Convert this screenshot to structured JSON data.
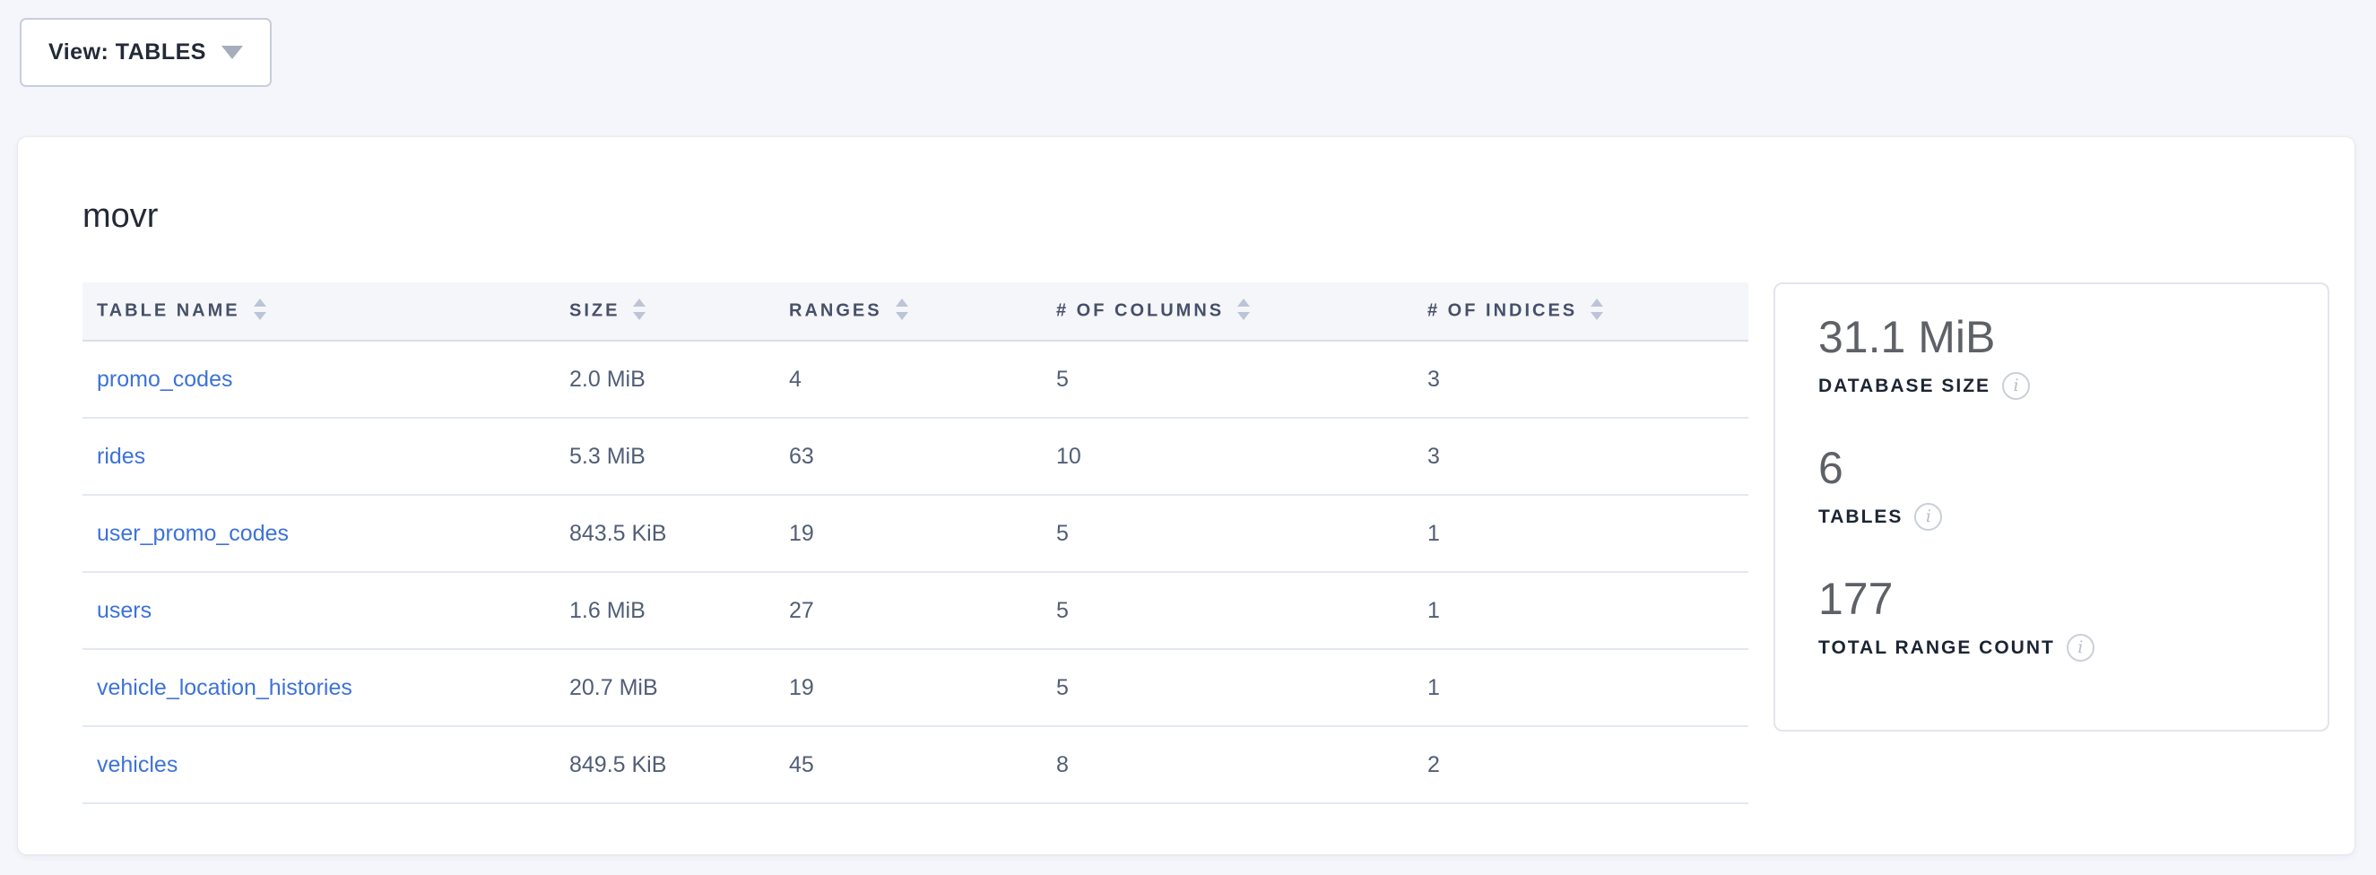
{
  "toolbar": {
    "view_button": {
      "label": "View: TABLES"
    }
  },
  "database_card": {
    "title": "movr",
    "table": {
      "headers": [
        {
          "key": "table-name",
          "label": "TABLE NAME"
        },
        {
          "key": "size",
          "label": "SIZE"
        },
        {
          "key": "ranges",
          "label": "RANGES"
        },
        {
          "key": "num-columns",
          "label": "# OF COLUMNS"
        },
        {
          "key": "num-indices",
          "label": "# OF INDICES"
        }
      ],
      "rows": [
        {
          "table_name": "promo_codes",
          "size": "2.0 MiB",
          "ranges": "4",
          "num_columns": "5",
          "num_indices": "3"
        },
        {
          "table_name": "rides",
          "size": "5.3 MiB",
          "ranges": "63",
          "num_columns": "10",
          "num_indices": "3"
        },
        {
          "table_name": "user_promo_codes",
          "size": "843.5 KiB",
          "ranges": "19",
          "num_columns": "5",
          "num_indices": "1"
        },
        {
          "table_name": "users",
          "size": "1.6 MiB",
          "ranges": "27",
          "num_columns": "5",
          "num_indices": "1"
        },
        {
          "table_name": "vehicle_location_histories",
          "size": "20.7 MiB",
          "ranges": "19",
          "num_columns": "5",
          "num_indices": "1"
        },
        {
          "table_name": "vehicles",
          "size": "849.5 KiB",
          "ranges": "45",
          "num_columns": "8",
          "num_indices": "2"
        }
      ]
    },
    "summary_stats": [
      {
        "key": "database-size",
        "value": "31.1 MiB",
        "label": "DATABASE SIZE"
      },
      {
        "key": "tables",
        "value": "6",
        "label": "TABLES"
      },
      {
        "key": "total-range-count",
        "value": "177",
        "label": "TOTAL RANGE COUNT"
      }
    ]
  },
  "colors": {
    "page_background": "#f4f6fb",
    "card_background": "#ffffff",
    "link": "#3d72d8",
    "header_text": "#475068",
    "cell_text": "#525e76",
    "title_text": "#242a35",
    "stat_value": "#5e6167",
    "stat_label": "#1c2533",
    "sort_caret": "#bcc4d6",
    "row_divider": "#e4e8f2"
  }
}
